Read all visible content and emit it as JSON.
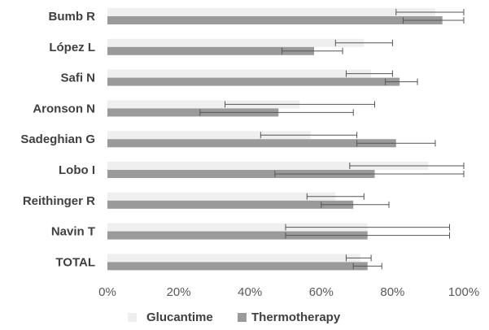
{
  "chart_data": {
    "type": "bar",
    "orientation": "horizontal",
    "categories": [
      "Bumb R",
      "López L",
      "Safi N",
      "Aronson N",
      "Sadeghian G",
      "Lobo I",
      "Reithinger R",
      "Navin T",
      "TOTAL"
    ],
    "series": [
      {
        "name": "Glucantime",
        "color": "#efefef",
        "values": [
          92,
          72,
          74,
          54,
          57,
          90,
          64,
          73,
          71
        ],
        "error_low": [
          81,
          64,
          67,
          33,
          43,
          68,
          56,
          50,
          67
        ],
        "error_high": [
          100,
          80,
          80,
          75,
          70,
          100,
          72,
          96,
          74
        ]
      },
      {
        "name": "Thermotherapy",
        "color": "#9a9a9a",
        "values": [
          94,
          58,
          82,
          48,
          81,
          75,
          69,
          73,
          73
        ],
        "error_low": [
          83,
          49,
          78,
          26,
          70,
          47,
          60,
          50,
          69
        ],
        "error_high": [
          100,
          66,
          87,
          69,
          92,
          100,
          79,
          96,
          77
        ]
      }
    ],
    "x_ticks": [
      "0%",
      "20%",
      "40%",
      "60%",
      "80%",
      "100%"
    ],
    "xlim": [
      0,
      100
    ],
    "unit": "%",
    "grid": false,
    "legend_position": "bottom"
  }
}
